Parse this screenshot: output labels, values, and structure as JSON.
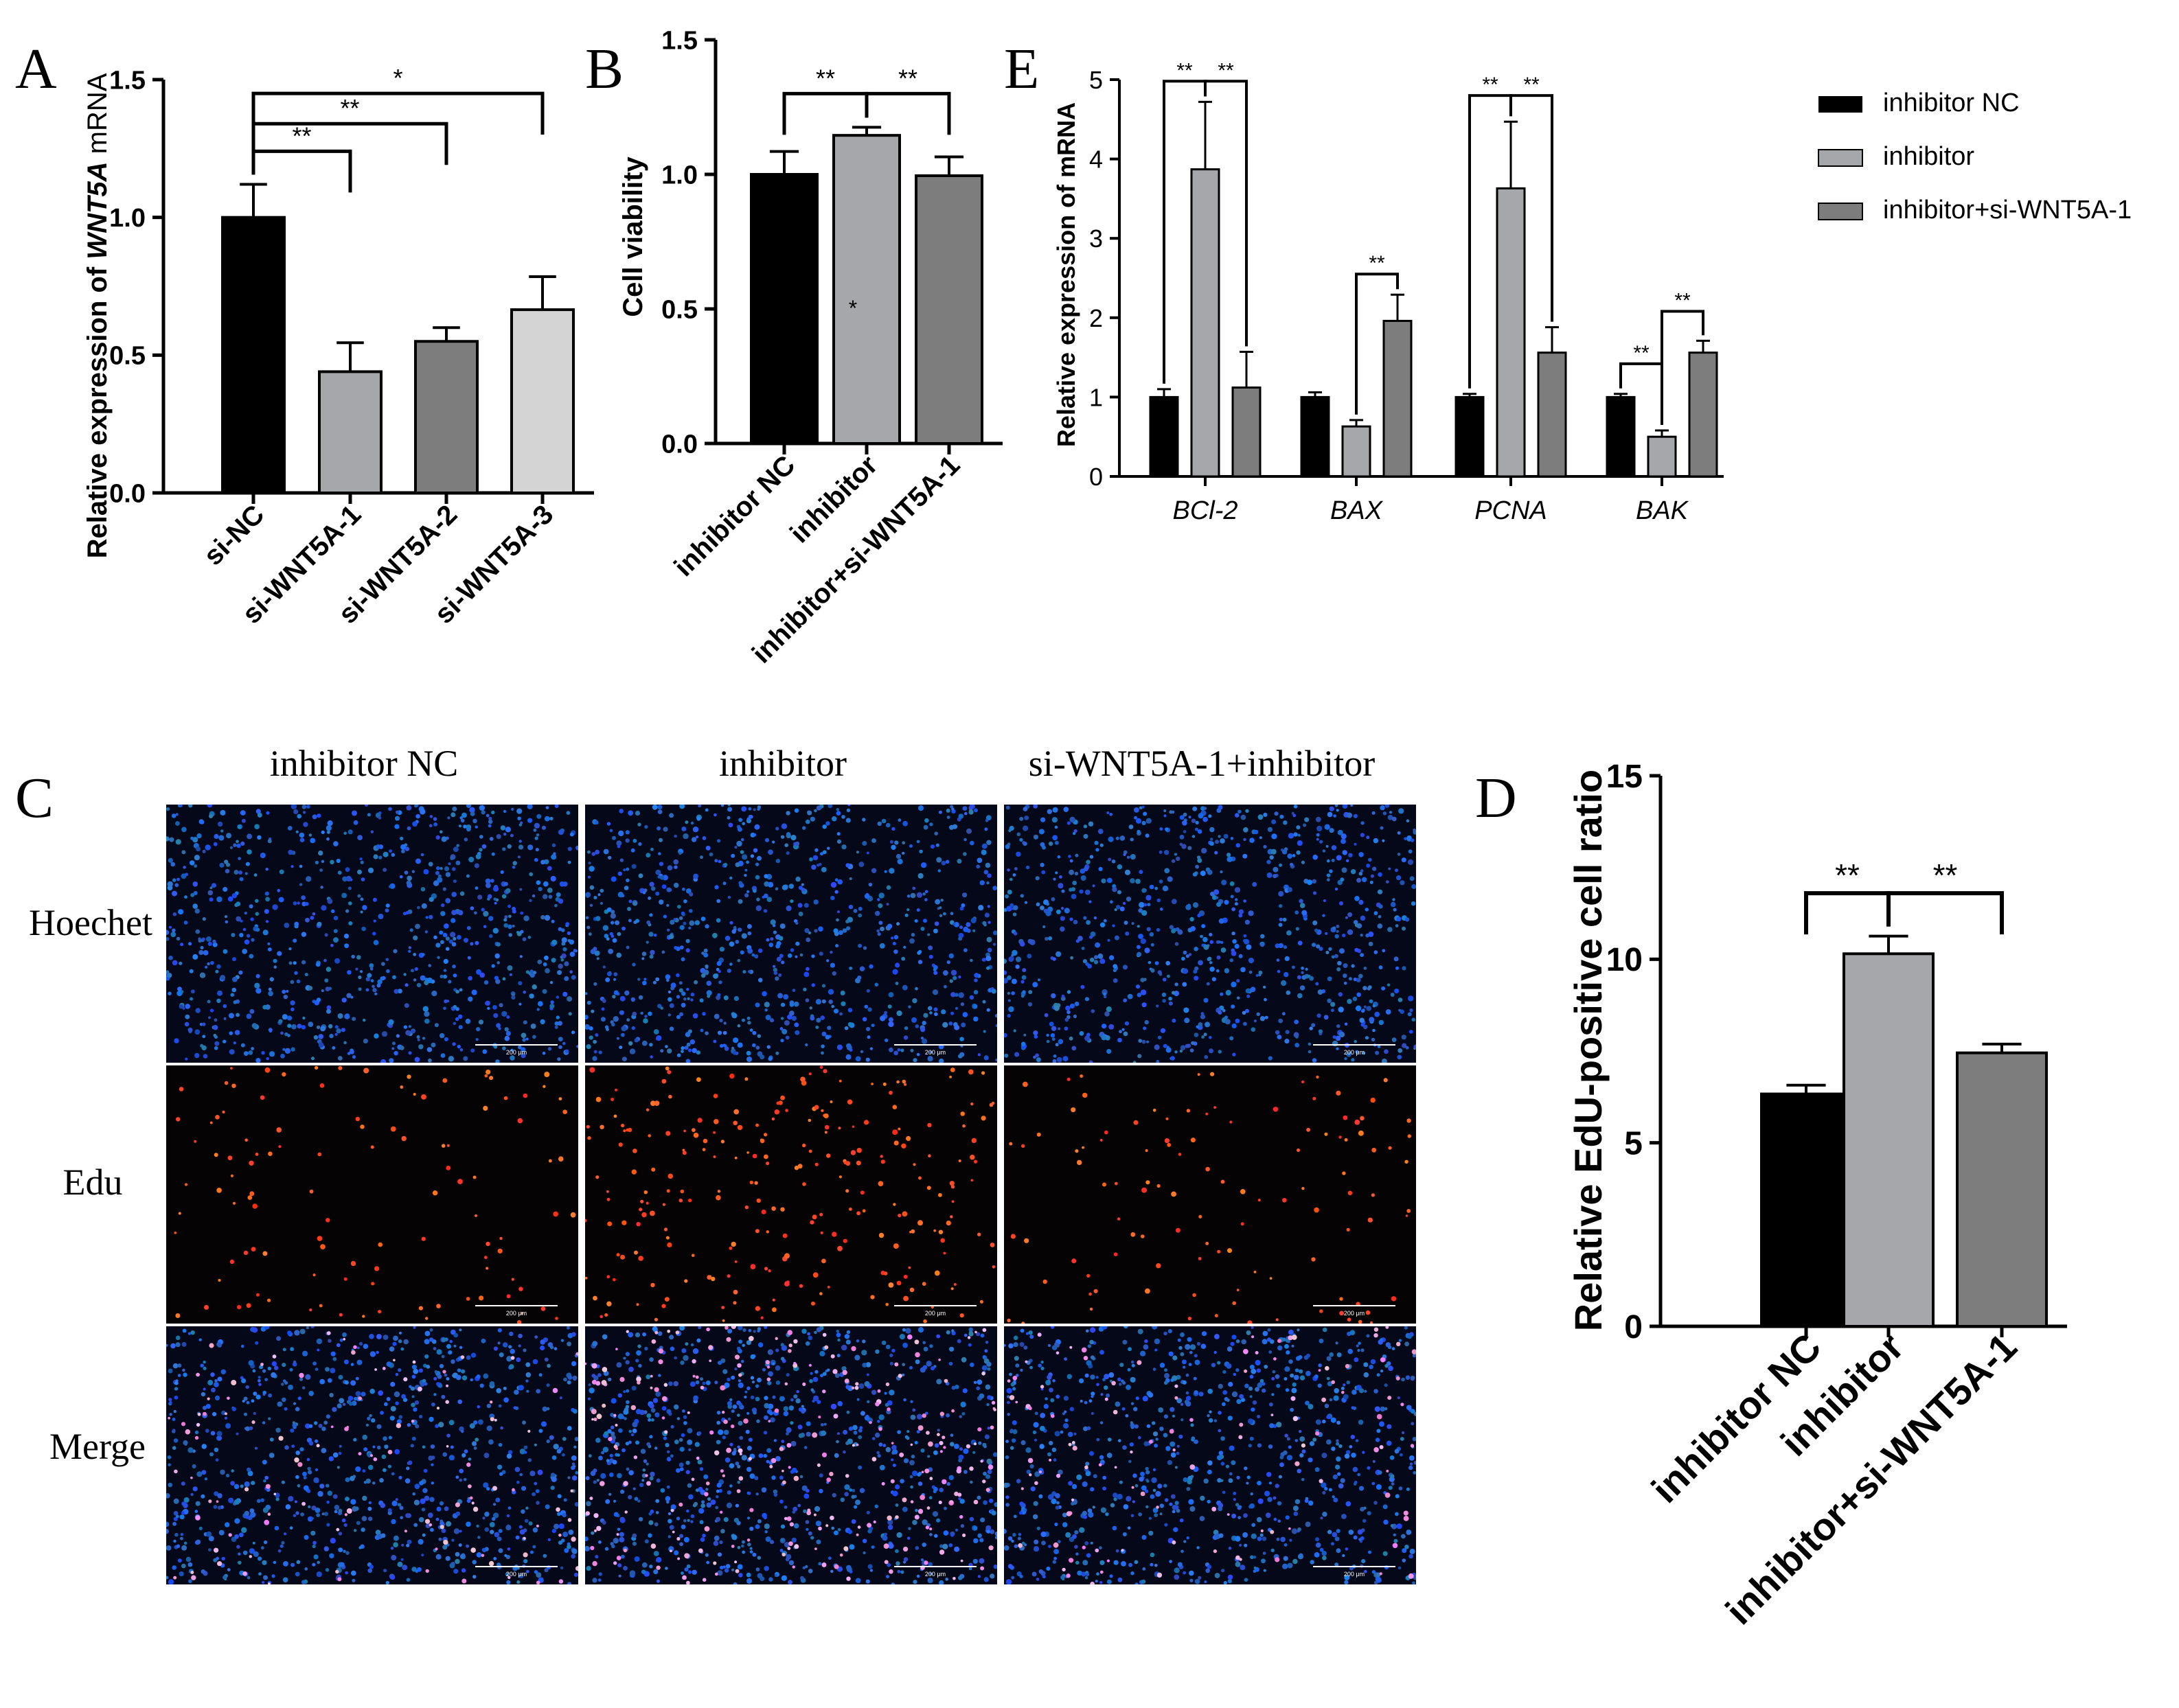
{
  "panel_letters": {
    "a": "A",
    "b": "B",
    "c": "C",
    "d": "D",
    "e": "E"
  },
  "colors": {
    "black": "#000000",
    "light_gray": "#a6a7ab",
    "dark_gray": "#7d7d7d",
    "lighter_gray": "#d4d4d4",
    "blue_nuclei": "#1f5fbf",
    "red_edu": "#ff3a1a"
  },
  "chart_data": [
    {
      "id": "A",
      "type": "bar",
      "ylabel_prefix": "Relative expression of ",
      "ylabel_gene": "WNT5A",
      "ylabel_suffix": " mRNA",
      "categories": [
        "si-NC",
        "si-WNT5A-1",
        "si-WNT5A-2",
        "si-WNT5A-3"
      ],
      "values": [
        1.0,
        0.44,
        0.55,
        0.665
      ],
      "errors": [
        0.12,
        0.105,
        0.05,
        0.12
      ],
      "bar_colors": [
        "#000000",
        "#a6a7ab",
        "#7d7d7d",
        "#d4d4d4"
      ],
      "ylim": [
        0,
        1.5
      ],
      "yticks": [
        "0.0",
        "0.5",
        "1.0",
        "1.5"
      ],
      "brackets": [
        {
          "from": 0,
          "to": 1,
          "label": "**",
          "level": 1.24
        },
        {
          "from": 0,
          "to": 2,
          "label": "**",
          "level": 1.34
        },
        {
          "from": 0,
          "to": 3,
          "label": "*",
          "level": 1.45
        }
      ]
    },
    {
      "id": "B",
      "type": "bar",
      "ylabel": "Cell viability",
      "categories": [
        "inhibitor NC",
        "inhibitor",
        "inhibitor+si-WNT5A-1"
      ],
      "values": [
        1.0,
        1.145,
        0.995
      ],
      "errors": [
        0.085,
        0.03,
        0.07
      ],
      "bar_colors": [
        "#000000",
        "#a6a7ab",
        "#7d7d7d"
      ],
      "ylim": [
        0,
        1.5
      ],
      "yticks": [
        "0.0",
        "0.5",
        "1.0",
        "1.5"
      ],
      "inner_mark": {
        "bar": 1,
        "label": "*",
        "at": 0.5
      },
      "brackets": [
        {
          "from": 0,
          "to": 1,
          "label": "**",
          "level": 1.3
        },
        {
          "from": 1,
          "to": 2,
          "label": "**",
          "level": 1.3
        }
      ]
    },
    {
      "id": "E",
      "type": "bar",
      "ylabel": "Relative expression of mRNA",
      "categories": [
        "BCl-2",
        "BAX",
        "PCNA",
        "BAK"
      ],
      "series": [
        {
          "name": "inhibitor NC",
          "color": "#000000",
          "values": [
            1.0,
            1.0,
            1.0,
            1.0
          ],
          "errors": [
            0.1,
            0.06,
            0.04,
            0.04
          ]
        },
        {
          "name": "inhibitor",
          "color": "#a6a7ab",
          "values": [
            3.87,
            0.63,
            3.63,
            0.5
          ],
          "errors": [
            0.85,
            0.08,
            0.84,
            0.08
          ]
        },
        {
          "name": "inhibitor+si-WNT5A-1",
          "color": "#7d7d7d",
          "values": [
            1.12,
            1.96,
            1.56,
            1.56
          ],
          "errors": [
            0.45,
            0.33,
            0.32,
            0.15
          ]
        }
      ],
      "ylim": [
        0,
        5
      ],
      "yticks": [
        "0",
        "1",
        "2",
        "3",
        "4",
        "5"
      ],
      "brackets": [
        {
          "group": 0,
          "from": 0,
          "to": 1,
          "label": "**",
          "level": 4.98
        },
        {
          "group": 0,
          "from": 1,
          "to": 2,
          "label": "**",
          "level": 4.98
        },
        {
          "group": 1,
          "from": 1,
          "to": 2,
          "label": "**",
          "level": 2.55
        },
        {
          "group": 2,
          "from": 0,
          "to": 1,
          "label": "**",
          "level": 4.8
        },
        {
          "group": 2,
          "from": 1,
          "to": 2,
          "label": "**",
          "level": 4.8
        },
        {
          "group": 3,
          "from": 0,
          "to": 1,
          "label": "**",
          "level": 1.42
        },
        {
          "group": 3,
          "from": 1,
          "to": 2,
          "label": "**",
          "level": 2.08
        }
      ]
    },
    {
      "id": "D",
      "type": "bar",
      "ylabel": "Relative EdU-positive cell ratio",
      "categories": [
        "inhibitor NC",
        "inhibitor",
        "inhibitor+si-WNT5A-1"
      ],
      "values": [
        6.33,
        10.15,
        7.45
      ],
      "errors": [
        0.24,
        0.48,
        0.24
      ],
      "bar_colors": [
        "#000000",
        "#a6a7ab",
        "#7d7d7d"
      ],
      "ylim": [
        0,
        15
      ],
      "yticks": [
        "0",
        "5",
        "10",
        "15"
      ],
      "brackets": [
        {
          "from": 0,
          "to": 1,
          "label": "**",
          "level": 11.8
        },
        {
          "from": 1,
          "to": 2,
          "label": "**",
          "level": 11.8
        }
      ]
    }
  ],
  "legend": {
    "items": [
      {
        "label": "inhibitor NC",
        "color": "#000000"
      },
      {
        "label": "inhibitor",
        "color": "#a6a7ab"
      },
      {
        "label": "inhibitor+si-WNT5A-1",
        "color": "#7d7d7d"
      }
    ]
  },
  "micrograph_panel": {
    "columns": [
      "inhibitor NC",
      "inhibitor",
      "si-WNT5A-1+inhibitor"
    ],
    "rows": [
      "Hoechet",
      "Edu",
      "Merge"
    ],
    "scale_bar": "200 μm"
  }
}
